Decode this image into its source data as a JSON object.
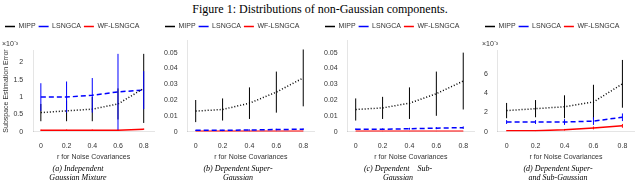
{
  "title": "Figure 1: Distributions of non-Gaussian components.",
  "chart_data": [
    {
      "type": "line",
      "title": "(a) Independent\nGaussian Mixture",
      "xlabel": "r for Noise Covariances",
      "ylabel": "Subspace Estimation Error",
      "annotations": [
        "×10⁻³"
      ],
      "x": [
        0,
        0.2,
        0.4,
        0.6,
        0.8
      ],
      "xlim": [
        -0.06,
        0.88
      ],
      "xticks": [
        0,
        0.2,
        0.4,
        0.6,
        0.8
      ],
      "ylim": [
        0,
        0.00235
      ],
      "yticks": [
        0,
        {
          "value": 0.0005,
          "label": "0.5"
        },
        {
          "value": 0.001,
          "label": "1"
        },
        {
          "value": 0.0015,
          "label": "1.5"
        },
        {
          "value": 0.002,
          "label": "2"
        }
      ],
      "grid": false,
      "legend": "upper left",
      "series": [
        {
          "name": "MIPP",
          "color": "black",
          "line_style": "dotted",
          "values": [
            0.00055,
            0.0006,
            0.00065,
            0.0008,
            0.00125
          ],
          "errors": [
            0.00025,
            0.0003,
            0.00035,
            0.00045,
            0.001
          ]
        },
        {
          "name": "LSNGCA",
          "color": "blue",
          "line_style": "dashed",
          "values": [
            0.001,
            0.001,
            0.00105,
            0.00115,
            0.0012
          ],
          "errors": [
            0.0004,
            0.00045,
            0.0005,
            0.0011,
            0.00055
          ]
        },
        {
          "name": "WF-LSNGCA",
          "color": "red",
          "line_style": "solid",
          "values": [
            4e-05,
            4e-05,
            4e-05,
            4e-05,
            7e-05
          ],
          "errors": [
            2e-05,
            2e-05,
            2e-05,
            2e-05,
            2e-05
          ]
        }
      ]
    },
    {
      "type": "line",
      "title": "(b) Dependent Super-\nGaussian",
      "xlabel": "r for Noise Covariances",
      "x": [
        0,
        0.2,
        0.4,
        0.6,
        0.8
      ],
      "xlim": [
        -0.06,
        0.88
      ],
      "xticks": [
        0,
        0.2,
        0.4,
        0.6,
        0.8
      ],
      "ylim": [
        0,
        0.058
      ],
      "yticks": [
        0,
        0.01,
        0.02,
        0.03,
        0.04,
        0.05
      ],
      "grid": false,
      "legend": "upper left",
      "series": [
        {
          "name": "MIPP",
          "color": "black",
          "line_style": "dotted",
          "values": [
            0.013,
            0.014,
            0.018,
            0.025,
            0.034
          ],
          "errors": [
            0.007,
            0.007,
            0.01,
            0.013,
            0.018
          ]
        },
        {
          "name": "LSNGCA",
          "color": "blue",
          "line_style": "dashed",
          "values": [
            0.0008,
            0.0008,
            0.001,
            0.0013,
            0.0015
          ],
          "errors": [
            0.0003,
            0.0003,
            0.0004,
            0.0005,
            0.0006
          ]
        },
        {
          "name": "WF-LSNGCA",
          "color": "red",
          "line_style": "solid",
          "values": [
            0.0003,
            0.0003,
            0.0003,
            0.0003,
            0.0003
          ],
          "errors": [
            0.0001,
            0.0001,
            0.0001,
            0.0001,
            0.0001
          ]
        }
      ]
    },
    {
      "type": "line",
      "title": "(c) Dependent    Sub-\nGaussian",
      "xlabel": "r for Noise Covariances",
      "x": [
        0,
        0.2,
        0.4,
        0.6,
        0.8
      ],
      "xlim": [
        -0.06,
        0.88
      ],
      "xticks": [
        0,
        0.2,
        0.4,
        0.6,
        0.8
      ],
      "ylim": [
        0,
        0.058
      ],
      "yticks": [
        0,
        0.01,
        0.02,
        0.03,
        0.04,
        0.05
      ],
      "grid": false,
      "legend": "upper left",
      "series": [
        {
          "name": "MIPP",
          "color": "black",
          "line_style": "dotted",
          "values": [
            0.014,
            0.015,
            0.018,
            0.024,
            0.032
          ],
          "errors": [
            0.007,
            0.007,
            0.01,
            0.014,
            0.018
          ]
        },
        {
          "name": "LSNGCA",
          "color": "blue",
          "line_style": "dashed",
          "values": [
            0.0015,
            0.0015,
            0.0018,
            0.0022,
            0.0025
          ],
          "errors": [
            0.0005,
            0.0005,
            0.0006,
            0.0007,
            0.0008
          ]
        },
        {
          "name": "WF-LSNGCA",
          "color": "red",
          "line_style": "solid",
          "values": [
            0.0003,
            0.0003,
            0.0003,
            0.0003,
            0.0003
          ],
          "errors": [
            0.0001,
            0.0001,
            0.0001,
            0.0001,
            0.0001
          ]
        }
      ]
    },
    {
      "type": "line",
      "title": "(d) Dependent Super-\nand Sub-Gaussian",
      "xlabel": "r for Noise Covariances",
      "annotations": [
        "×10⁻³"
      ],
      "x": [
        0,
        0.2,
        0.4,
        0.6,
        0.8
      ],
      "xlim": [
        -0.06,
        0.88
      ],
      "xticks": [
        0,
        0.2,
        0.4,
        0.6,
        0.8
      ],
      "ylim": [
        0,
        0.0085
      ],
      "yticks": [
        0,
        {
          "value": 0.002,
          "label": "2"
        },
        {
          "value": 0.004,
          "label": "4"
        },
        {
          "value": 0.006,
          "label": "6"
        }
      ],
      "grid": false,
      "legend": "upper left",
      "series": [
        {
          "name": "MIPP",
          "color": "black",
          "line_style": "dotted",
          "values": [
            0.0022,
            0.0024,
            0.0026,
            0.0031,
            0.005
          ],
          "errors": [
            0.0008,
            0.0009,
            0.0012,
            0.0018,
            0.0025
          ]
        },
        {
          "name": "LSNGCA",
          "color": "blue",
          "line_style": "dashed",
          "values": [
            0.001,
            0.001,
            0.001,
            0.0011,
            0.0015
          ],
          "errors": [
            0.0002,
            0.0002,
            0.0003,
            0.0004,
            0.0004
          ]
        },
        {
          "name": "WF-LSNGCA",
          "color": "red",
          "line_style": "solid",
          "values": [
            8e-05,
            0.0001,
            0.0002,
            0.00038,
            0.0006
          ],
          "errors": [
            5e-05,
            5e-05,
            8e-05,
            0.00015,
            0.0002
          ]
        }
      ]
    }
  ]
}
